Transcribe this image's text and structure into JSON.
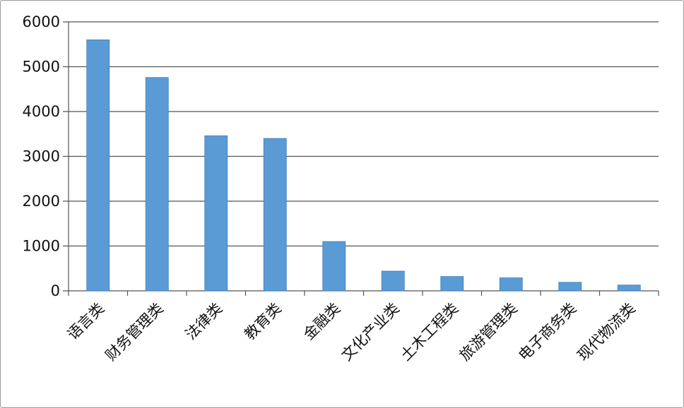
{
  "chart_data": {
    "type": "bar",
    "categories": [
      "语言类",
      "财务管理类",
      "法律类",
      "教育类",
      "金融类",
      "文化产业类",
      "土木工程类",
      "旅游管理类",
      "电子商务类",
      "现代物流类"
    ],
    "values": [
      5600,
      4760,
      3460,
      3400,
      1100,
      440,
      320,
      290,
      190,
      130
    ],
    "title": "",
    "xlabel": "",
    "ylabel": "",
    "ylim": [
      0,
      6000
    ],
    "yticks": [
      0,
      1000,
      2000,
      3000,
      4000,
      5000,
      6000
    ],
    "grid": true,
    "legend": "none",
    "colors": {
      "bar": "#5b9bd5",
      "bar_stroke": "#3f7fbf",
      "grid": "#555555",
      "axis": "#555555"
    }
  }
}
